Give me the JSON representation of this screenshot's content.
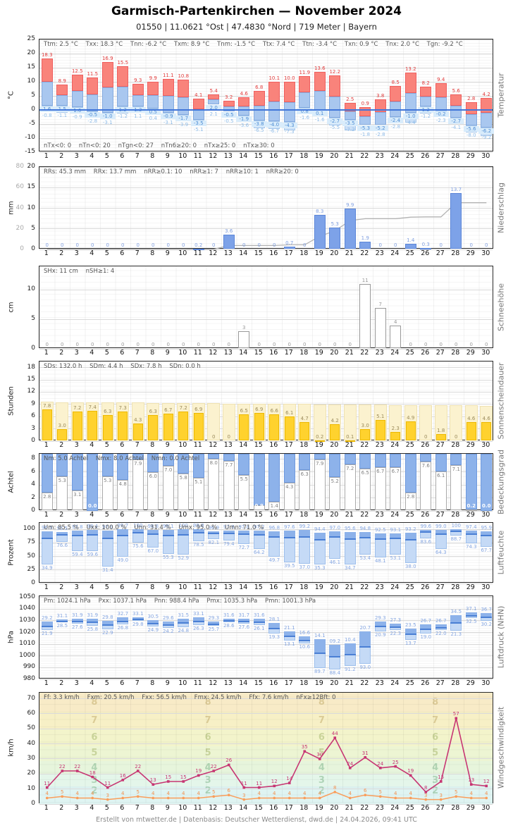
{
  "header": {
    "title": "Garmisch-Partenkirchen  —  November 2024",
    "subtitle": "01550  |  11.0621 °Ost  |  47.4830 °Nord  |  719 Meter  |  Bayern"
  },
  "footer": "Erstellt von mtwetter.de | Datenbasis: Deutscher Wetterdienst, dwd.de | 24.04.2026, 09:41 UTC",
  "days": [
    1,
    2,
    3,
    4,
    5,
    6,
    7,
    8,
    9,
    10,
    11,
    12,
    13,
    14,
    15,
    16,
    17,
    18,
    19,
    20,
    21,
    22,
    23,
    24,
    25,
    26,
    27,
    28,
    29,
    30
  ],
  "chart_data": [
    {
      "id": "temperature",
      "type": "bar",
      "unit": "°C",
      "label": "Temperatur",
      "stats": "Ttm: 2.5 °C    Txx: 18.3 °C    Tnn: -6.2 °C    Txm: 8.9 °C    Tnm: -1.5 °C    Ttx: 7.4 °C    Ttn: -3.4 °C    Txn: 0.9 °C    Tnx: 2.0 °C    Tgn: -9.2 °C",
      "footnote": "nTx<0: 0    nTn<0: 20    nTgn<0: 27    nTn6≥20: 0    nTx≥25: 0    nTx≥30: 0",
      "ylim": [
        -15,
        25
      ],
      "yticks": [
        25,
        20,
        15,
        10,
        5,
        0,
        -5,
        -10,
        -15
      ],
      "tmax": [
        18.3,
        8.9,
        12.5,
        11.5,
        16.9,
        15.5,
        9.3,
        9.9,
        11.1,
        10.8,
        4.1,
        5.4,
        3.2,
        4.6,
        6.8,
        10.1,
        10.0,
        11.9,
        13.6,
        12.2,
        2.5,
        0.9,
        3.8,
        8.5,
        13.2,
        8.2,
        9.4,
        5.6,
        2.8,
        4.2
      ],
      "tmin": [
        1.6,
        1.5,
        1.0,
        -0.5,
        -1.0,
        1.2,
        1.3,
        0.5,
        -0.9,
        -1.7,
        -3.5,
        2.0,
        -0.5,
        -1.9,
        -3.8,
        -4.0,
        -4.3,
        0.8,
        0.1,
        -2.7,
        -3.5,
        -5.3,
        -5.2,
        -2.4,
        -1.0,
        1.2,
        -0.2,
        -2.7,
        -5.6,
        -6.2
      ],
      "tgmin": [
        -0.8,
        -1.1,
        -0.9,
        -2.8,
        -3.1,
        -1.2,
        1.1,
        0.4,
        -3.1,
        -3.9,
        -5.1,
        2.1,
        -0.5,
        -3.6,
        -6.5,
        -6.7,
        -7.3,
        -1.6,
        -1.6,
        -5.5,
        -7.2,
        -1.8,
        -2.8,
        -2.8,
        -4.4,
        -1.2,
        -2.3,
        -4.1,
        -8.0,
        -9.2
      ]
    },
    {
      "id": "precipitation",
      "type": "bar",
      "unit": "mm",
      "label": "Niederschlag",
      "stats": "RRs: 45.3 mm    RRx: 13.7 mm    nRR≥0.1: 10    nRR≥1: 7    nRR≥10: 1    nRR≥20: 0",
      "ylim": [
        0,
        20
      ],
      "yticks": [
        20,
        15,
        10,
        5,
        0
      ],
      "yticks2": [
        80,
        60,
        40,
        20,
        0
      ],
      "cumulative_axis_max": 80,
      "values": [
        0,
        0,
        0,
        0,
        0,
        0,
        0,
        0,
        0,
        0,
        0.2,
        0,
        3.6,
        0,
        0,
        0,
        0.7,
        0,
        8.3,
        5.3,
        9.9,
        1.9,
        0,
        0,
        1.4,
        0.3,
        0,
        13.7,
        0,
        0
      ]
    },
    {
      "id": "snow",
      "type": "bar",
      "unit": "cm",
      "label": "Schneehöhe",
      "stats": "SHx: 11 cm    nSH≥1: 4",
      "ylim": [
        0,
        14
      ],
      "yticks": [
        10,
        5,
        0
      ],
      "values": [
        0,
        0,
        0,
        0,
        0,
        0,
        0,
        0,
        0,
        0,
        0,
        0,
        0,
        3,
        0,
        0,
        0,
        0,
        0,
        0,
        0,
        11,
        7,
        4,
        0,
        0,
        0,
        0,
        0,
        0
      ]
    },
    {
      "id": "sunshine",
      "type": "bar",
      "unit": "Stunden",
      "label": "Sonnenscheindauer",
      "stats": "SDs: 132.0 h    SDm: 4.4 h    SDx: 7.8 h    SDn: 0.0 h",
      "ylim": [
        0,
        19.5
      ],
      "yticks": [
        18,
        15,
        12,
        9,
        6,
        3,
        0
      ],
      "values": [
        7.8,
        3.0,
        7.2,
        7.4,
        6.3,
        7.3,
        4.3,
        6.3,
        6.7,
        7.2,
        6.9,
        0,
        0,
        6.5,
        6.9,
        6.6,
        6.1,
        4.7,
        0.2,
        4.2,
        0.1,
        3.0,
        5.1,
        2.3,
        4.9,
        0,
        1.8,
        0,
        4.6,
        4.6
      ],
      "possible_hours_estimate": {
        "day1": 9.6,
        "day30": 8.7
      }
    },
    {
      "id": "cloudcover",
      "type": "bar",
      "unit": "Achtel",
      "label": "Bedeckungsgrad",
      "stats": "Nm: 5.0 Achtel    Nmx: 8.0 Achtel    Nmn: 0.0 Achtel",
      "ylim": [
        0,
        8.8
      ],
      "yticks": [
        8,
        6,
        4,
        2,
        0
      ],
      "values": [
        2.8,
        5.3,
        3.1,
        0.0,
        5.3,
        4.8,
        7.9,
        6.0,
        7.0,
        5.8,
        5.1,
        8.0,
        7.7,
        5.5,
        0.9,
        1.4,
        4.3,
        6.3,
        7.9,
        5.2,
        7.2,
        6.5,
        6.7,
        6.7,
        2.8,
        7.6,
        6.1,
        7.1,
        0.2,
        0.0
      ]
    },
    {
      "id": "humidity",
      "type": "bar",
      "unit": "Prozent",
      "label": "Luftfeuchte",
      "stats": "Um: 85.5 %    Uxx: 100.0 %    Unn: 31.4 %    Umx: 95.0 %    Umn: 71.0 %",
      "ylim": [
        0,
        112
      ],
      "yticks": [
        100,
        75,
        50,
        25,
        0
      ],
      "max": [
        96.5,
        95.5,
        97.8,
        98.4,
        97.9,
        99.7,
        100,
        98.8,
        99.1,
        100,
        99.8,
        96.9,
        97.8,
        97.8,
        97.2,
        96.8,
        97.6,
        99.2,
        94.4,
        97.0,
        95.6,
        94.8,
        92.5,
        93.1,
        93.2,
        99.6,
        99.0,
        100,
        97.4,
        95.9
      ],
      "min": [
        34.9,
        76.6,
        59.4,
        59.6,
        31.4,
        49.0,
        75.6,
        67.0,
        55.3,
        52.9,
        78.5,
        82.1,
        79.4,
        72.7,
        64.2,
        49.7,
        39.5,
        37.0,
        35.3,
        46.1,
        34.7,
        53.4,
        48.1,
        53.1,
        38.0,
        83.6,
        64.3,
        88.7,
        74.3,
        67.7
      ]
    },
    {
      "id": "pressure",
      "type": "bar",
      "unit": "hPa",
      "label": "Luftdruck (NHN)",
      "stats": "Pm: 1024.1 hPa    Pxx: 1037.1 hPa    Pnn: 988.4 hPa    Pmx: 1035.3 hPa    Pmn: 1001.3 hPa",
      "ylim": [
        980,
        1051
      ],
      "yticks": [
        1050,
        1040,
        1030,
        1020,
        1010,
        1000,
        990,
        980
      ],
      "max": [
        1029.2,
        1031.1,
        1031.9,
        1031.9,
        1029.8,
        1032.7,
        1033.1,
        1030.5,
        1029.6,
        1031.5,
        1033.1,
        1029.3,
        1031.6,
        1031.7,
        1031.6,
        1028.1,
        1021.1,
        1016.6,
        1014.1,
        1009.2,
        1010.4,
        1020.7,
        1029.3,
        1027.3,
        1023.5,
        1026.7,
        1026.7,
        1034.5,
        1037.1,
        1036.7
      ],
      "min": [
        1021.9,
        1028.5,
        1027.6,
        1025.8,
        1022.9,
        1026.8,
        1029.8,
        1024.9,
        1024.2,
        1024.8,
        1026.3,
        1025.7,
        1028.6,
        1027.6,
        1026.1,
        1019.3,
        1013.1,
        1010.6,
        989.7,
        988.4,
        991.2,
        993.0,
        1020.9,
        1022.3,
        1013.7,
        1019.0,
        1022.0,
        1021.3,
        1032.5,
        1030.2
      ]
    },
    {
      "id": "wind",
      "type": "line",
      "unit": "km/h",
      "label": "Windgeschwindigkeit",
      "stats": "Ff: 3.3 km/h    Fxm: 20.5 km/h    Fxx: 56.5 km/h    Fmx: 24.5 km/h    Ffx: 7.6 km/h    nFx≥12Bft: 0",
      "ylim": [
        0,
        74
      ],
      "yticks": [
        70,
        60,
        50,
        40,
        30,
        20,
        10,
        0
      ],
      "beaufort_labels": [
        2,
        3,
        4,
        5,
        6,
        7,
        8
      ],
      "gusts": [
        11,
        22,
        22,
        18,
        11,
        16,
        22,
        13,
        15,
        15,
        19,
        22,
        26,
        11,
        11,
        12,
        14,
        35,
        30,
        44,
        24,
        31,
        24,
        25,
        19,
        8,
        15,
        57,
        13,
        12
      ],
      "mean": [
        4,
        5,
        4,
        4,
        3,
        4,
        5,
        4,
        4,
        4,
        4,
        5,
        6,
        3,
        4,
        4,
        4,
        4,
        4,
        8,
        4,
        6,
        5,
        4,
        4,
        3,
        3,
        5,
        4,
        4
      ]
    }
  ]
}
